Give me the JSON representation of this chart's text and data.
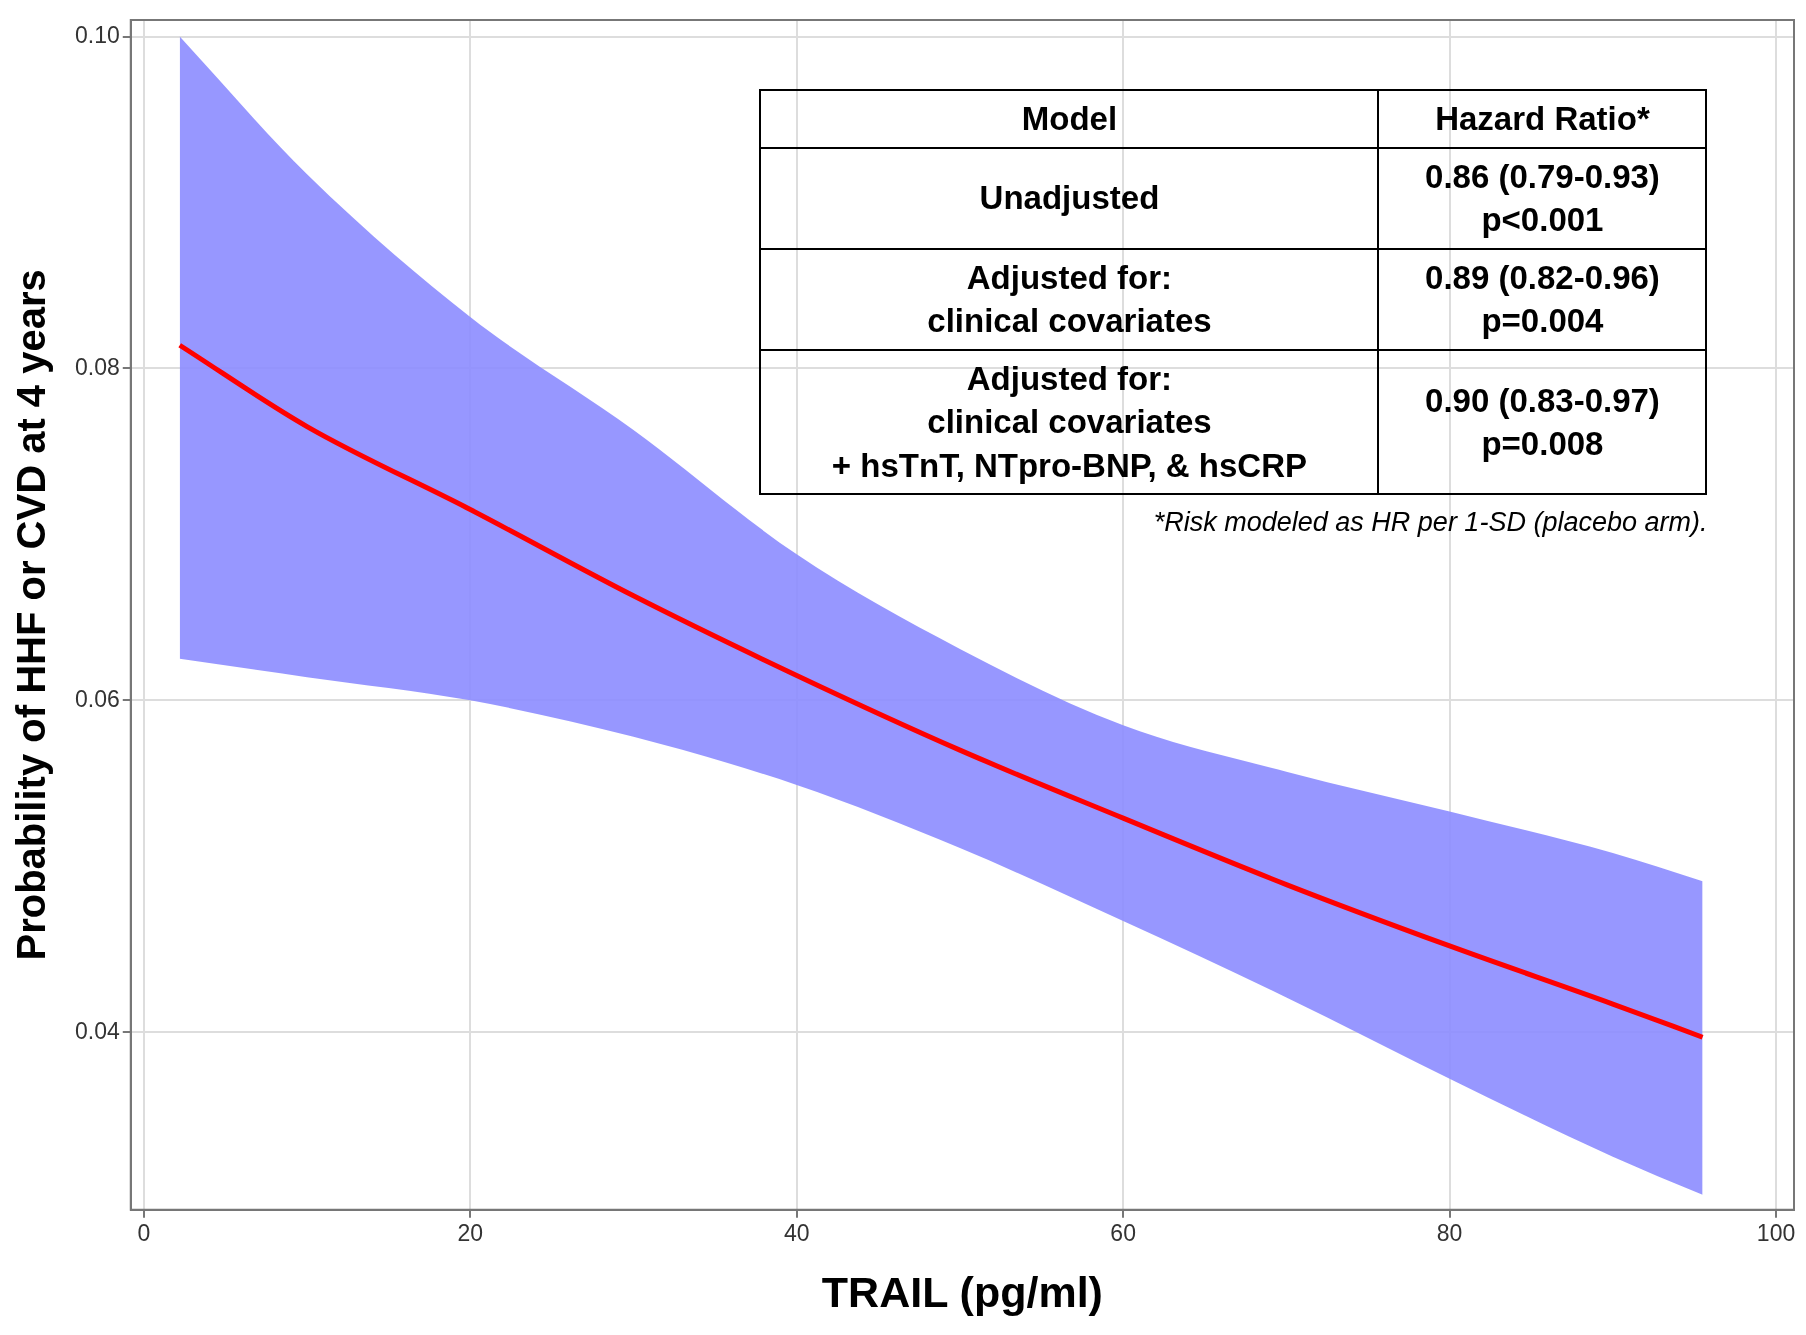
{
  "chart_data": {
    "type": "line",
    "xlabel": "TRAIL (pg/ml)",
    "ylabel": "Probability of HHF or CVD at 4 years",
    "xlim": [
      -0.8,
      101.1
    ],
    "xticks": [
      0,
      20,
      40,
      60,
      80,
      100
    ],
    "ylim": [
      0.0293,
      0.101
    ],
    "yticks": [
      {
        "value": 0.04,
        "label": "0.04"
      },
      {
        "value": 0.06,
        "label": "0.06"
      },
      {
        "value": 0.08,
        "label": "0.08"
      },
      {
        "value": 0.1,
        "label": "0.10"
      }
    ],
    "grid": true,
    "legend": false,
    "marker": "none",
    "line_style": "solid",
    "series": [
      {
        "color": "#ff0000",
        "x": [
          2.2,
          10,
          20,
          30,
          40,
          50,
          60,
          70,
          80,
          90,
          95.5
        ],
        "values": [
          0.0814,
          0.0765,
          0.0715,
          0.0663,
          0.0615,
          0.057,
          0.0529,
          0.0489,
          0.0452,
          0.0417,
          0.0397
        ],
        "lower": [
          0.0625,
          0.0614,
          0.06,
          0.0578,
          0.0549,
          0.0511,
          0.0467,
          0.0421,
          0.0372,
          0.0325,
          0.0302
        ],
        "upper": [
          0.1,
          0.0917,
          0.0831,
          0.0763,
          0.0688,
          0.0631,
          0.0585,
          0.0557,
          0.0533,
          0.0508,
          0.0491
        ]
      }
    ],
    "annotations": [
      "Model",
      "Hazard Ratio*",
      "Unadjusted",
      "0.86 (0.79-0.93)\np<0.001",
      "Adjusted for:\nclinical covariates",
      "0.89 (0.82-0.96)\np=0.004",
      "Adjusted for:\nclinical covariates\n+ hsTnT, NTpro-BNP, & hsCRP",
      "0.90 (0.83-0.97)\np=0.008",
      "*Risk modeled as HR per 1-SD (placebo arm)."
    ]
  }
}
